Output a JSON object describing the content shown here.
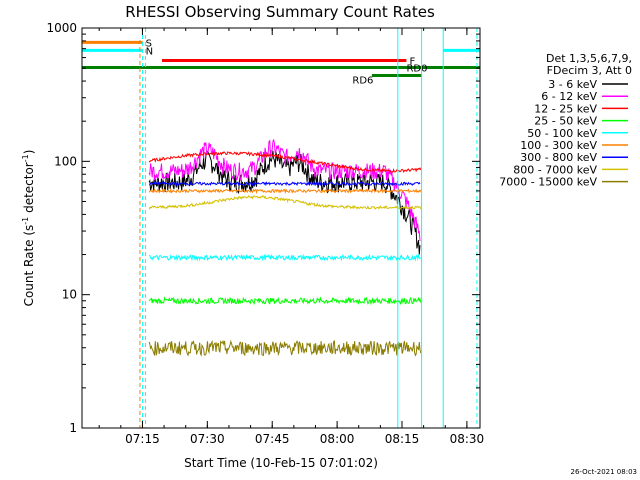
{
  "chart_data": {
    "type": "line",
    "title": "RHESSI Observing Summary Count Rates",
    "xlabel": "Start Time (10-Feb-15 07:01:02)",
    "ylabel_main": "Count Rate (s",
    "ylabel_sup1": "-1",
    "ylabel_mid": " detector",
    "ylabel_sup2": "-1",
    "ylabel_end": ")",
    "y_scale": "log",
    "ylim": [
      1,
      1000
    ],
    "xlim_minutes": [
      0,
      92
    ],
    "x_ticks": [
      {
        "label": "07:15",
        "min": 13.97
      },
      {
        "label": "07:30",
        "min": 28.97
      },
      {
        "label": "07:45",
        "min": 43.97
      },
      {
        "label": "08:00",
        "min": 58.97
      },
      {
        "label": "08:15",
        "min": 73.97
      },
      {
        "label": "08:30",
        "min": 88.97
      }
    ],
    "y_ticks": [
      {
        "label": "1",
        "value": 1
      },
      {
        "label": "10",
        "value": 10
      },
      {
        "label": "100",
        "value": 100
      },
      {
        "label": "1000",
        "value": 1000
      }
    ],
    "legend_header": [
      "Det 1,3,5,6,7,9,",
      "FDecim 3, Att 0"
    ],
    "legend_position": "right",
    "series": [
      {
        "name": "3 - 6 keV",
        "color": "#000000",
        "level": 70,
        "noise": 0.35
      },
      {
        "name": "6 - 12 keV",
        "color": "#ff00ff",
        "level": 85,
        "noise": 0.3
      },
      {
        "name": "12 - 25 keV",
        "color": "#ff0000",
        "level": 100,
        "noise": 0.05
      },
      {
        "name": "25 - 50 keV",
        "color": "#00ff00",
        "level": 9,
        "noise": 0.1
      },
      {
        "name": "50 - 100 keV",
        "color": "#00ffff",
        "level": 19,
        "noise": 0.08
      },
      {
        "name": "100 - 300 keV",
        "color": "#ff8000",
        "level": 60,
        "noise": 0.05
      },
      {
        "name": "300 - 800 keV",
        "color": "#0000ff",
        "level": 68,
        "noise": 0.05
      },
      {
        "name": "800 - 7000 keV",
        "color": "#d4c000",
        "level": 45,
        "noise": 0.05
      },
      {
        "name": "7000 - 15000 keV",
        "color": "#8b7d00",
        "level": 4,
        "noise": 0.25
      }
    ],
    "flags": [
      {
        "label": "S",
        "color": "#ff8000",
        "value": 780,
        "start": 0,
        "end": 14
      },
      {
        "label": "N",
        "color": "#00ffff",
        "value": 680,
        "start": 0,
        "end": 14
      },
      {
        "label": "F",
        "color": "#ff0000",
        "value": 570,
        "start": 18.5,
        "end": 75
      },
      {
        "label": "RD0",
        "color": "#008000",
        "value": 505,
        "start": 0,
        "end": 92
      },
      {
        "label": "RD6",
        "color": "#008000",
        "value": 440,
        "start": 67,
        "end": 78.5
      }
    ],
    "timestamp": "26-Oct-2021 08:03"
  }
}
